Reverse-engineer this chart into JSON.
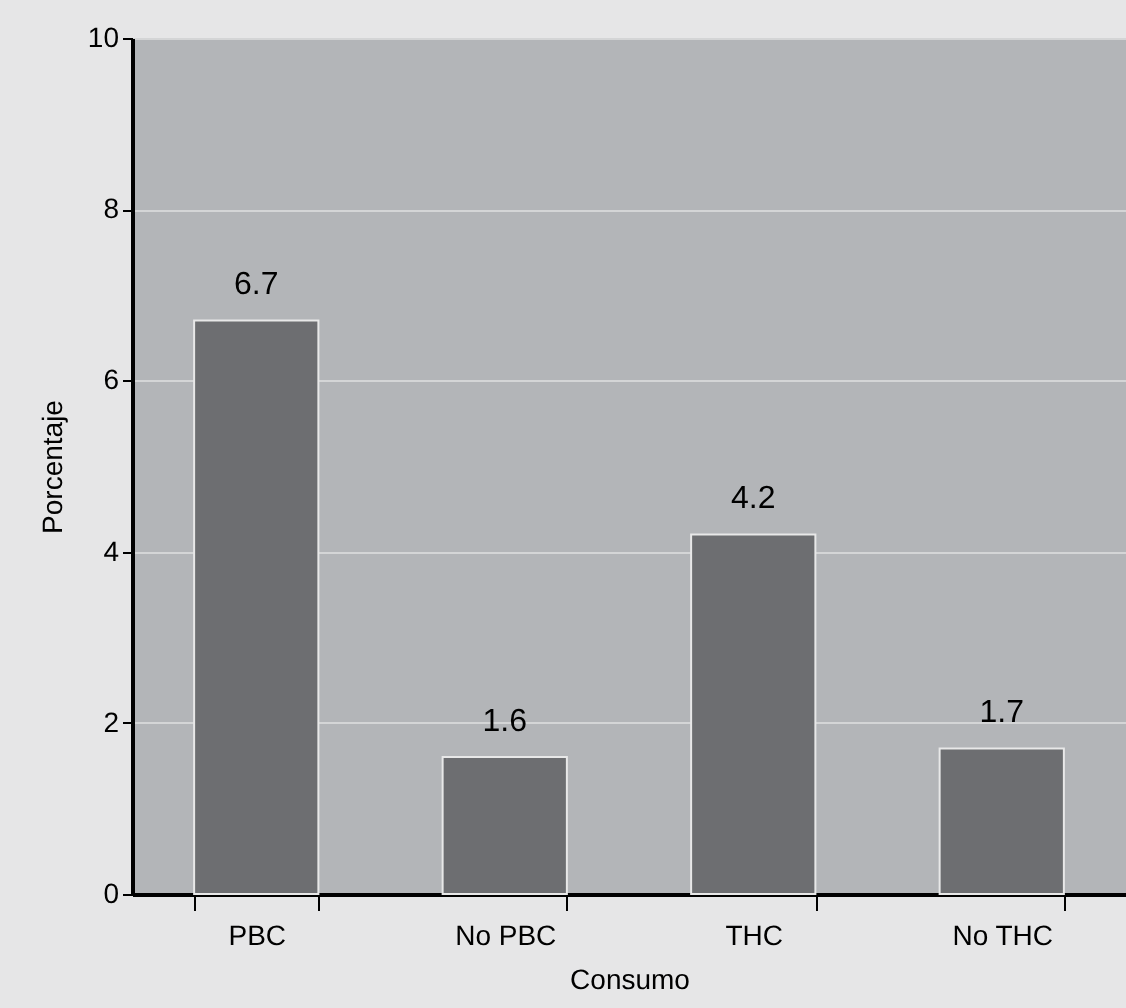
{
  "chart_data": {
    "type": "bar",
    "xlabel": "Consumo",
    "ylabel": "Porcentaje",
    "categories": [
      "PBC",
      "No PBC",
      "THC",
      "No THC"
    ],
    "values": [
      6.7,
      1.6,
      4.2,
      1.7
    ],
    "color": "#6d6e71",
    "ylim": [
      0,
      10
    ],
    "yticks": [
      0,
      2,
      4,
      6,
      8,
      10
    ],
    "grid": "y",
    "data_labels": true
  }
}
